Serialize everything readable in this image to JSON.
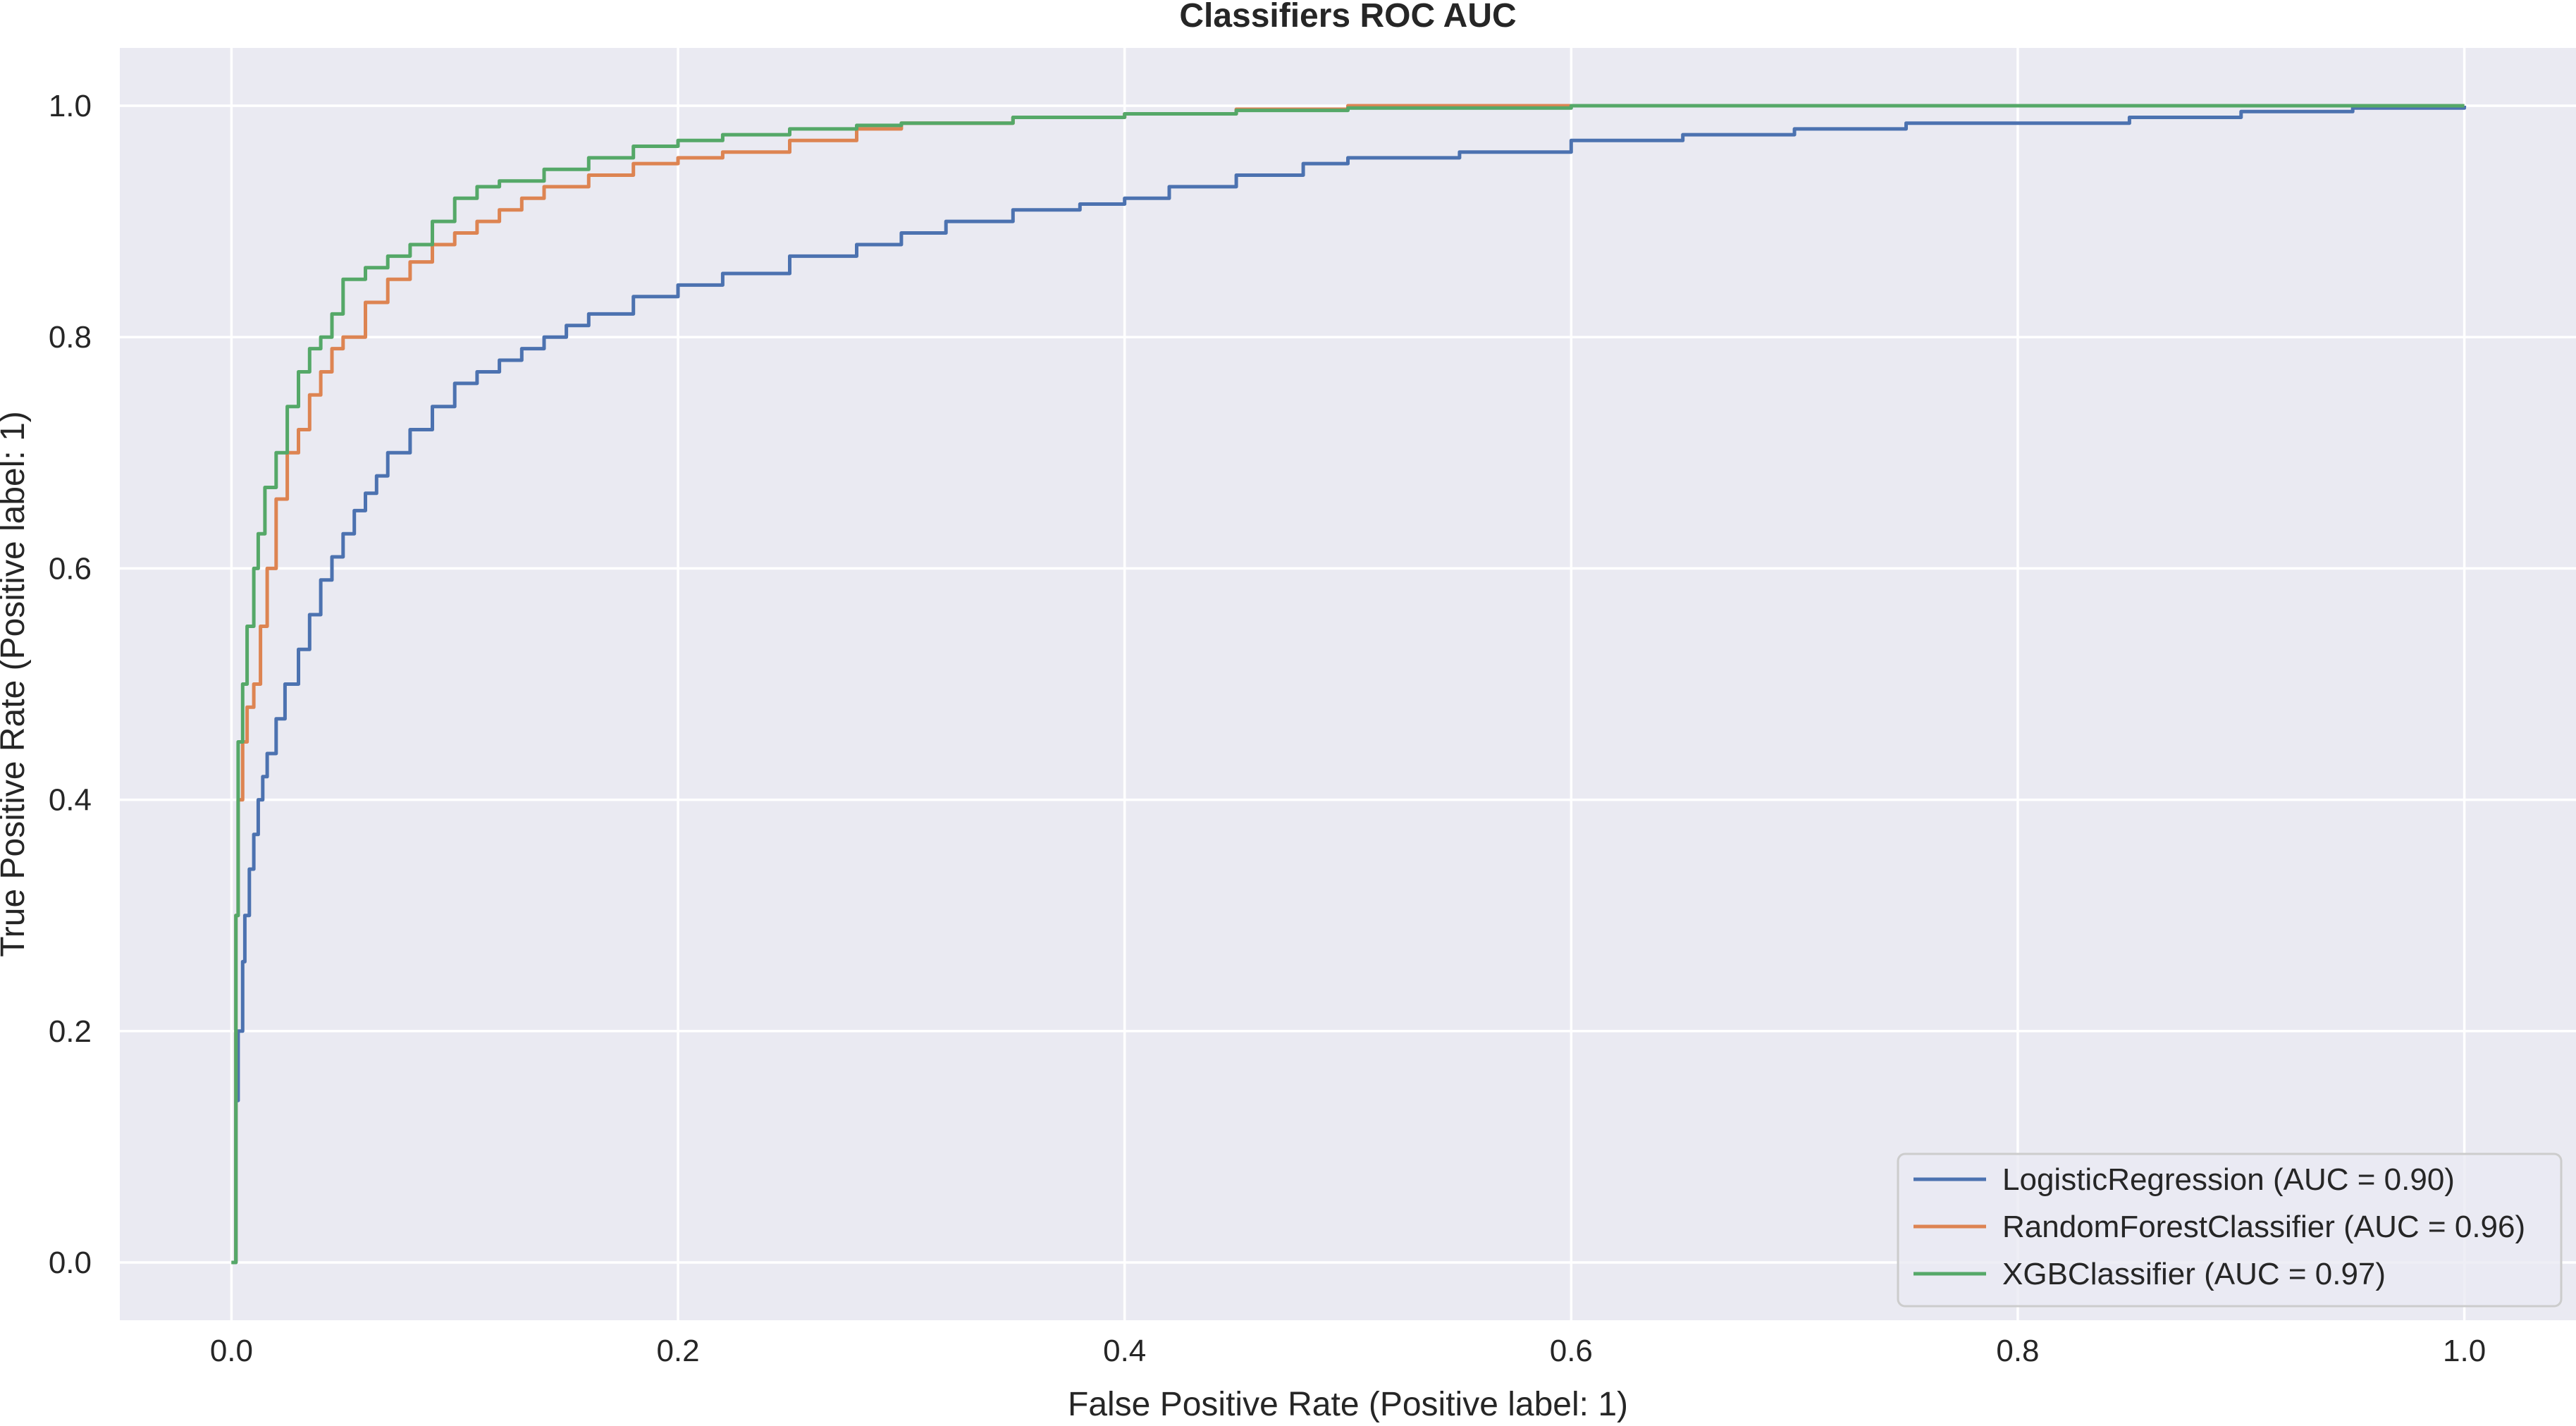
{
  "chart_data": {
    "type": "line",
    "title": "Classifiers ROC AUC",
    "xlabel": "False Positive Rate (Positive label: 1)",
    "ylabel": "True Positive Rate (Positive label: 1)",
    "xlim": [
      -0.05,
      1.05
    ],
    "ylim": [
      -0.05,
      1.05
    ],
    "x_ticks": [
      0.0,
      0.2,
      0.4,
      0.6,
      0.8,
      1.0
    ],
    "x_tick_labels": [
      "0.0",
      "0.2",
      "0.4",
      "0.6",
      "0.8",
      "1.0"
    ],
    "y_ticks": [
      0.0,
      0.2,
      0.4,
      0.6,
      0.8,
      1.0
    ],
    "y_tick_labels": [
      "0.0",
      "0.2",
      "0.4",
      "0.6",
      "0.8",
      "1.0"
    ],
    "grid": true,
    "background_color": "#EAEAF2",
    "grid_color": "#FFFFFF",
    "legend_position": "lower-right",
    "series": [
      {
        "name": "LogisticRegression (AUC = 0.90)",
        "color": "#4C72B0",
        "x": [
          0.0,
          0.002,
          0.003,
          0.005,
          0.006,
          0.008,
          0.01,
          0.012,
          0.014,
          0.016,
          0.02,
          0.024,
          0.03,
          0.035,
          0.04,
          0.045,
          0.05,
          0.055,
          0.06,
          0.065,
          0.07,
          0.08,
          0.09,
          0.1,
          0.11,
          0.12,
          0.13,
          0.14,
          0.15,
          0.16,
          0.18,
          0.2,
          0.22,
          0.25,
          0.28,
          0.3,
          0.32,
          0.35,
          0.38,
          0.4,
          0.42,
          0.45,
          0.48,
          0.5,
          0.55,
          0.6,
          0.65,
          0.7,
          0.75,
          0.8,
          0.85,
          0.9,
          0.95,
          1.0
        ],
        "y": [
          0.0,
          0.14,
          0.2,
          0.26,
          0.3,
          0.34,
          0.37,
          0.4,
          0.42,
          0.44,
          0.47,
          0.5,
          0.53,
          0.56,
          0.59,
          0.61,
          0.63,
          0.65,
          0.665,
          0.68,
          0.7,
          0.72,
          0.74,
          0.76,
          0.77,
          0.78,
          0.79,
          0.8,
          0.81,
          0.82,
          0.835,
          0.845,
          0.855,
          0.87,
          0.88,
          0.89,
          0.9,
          0.91,
          0.915,
          0.92,
          0.93,
          0.94,
          0.95,
          0.955,
          0.96,
          0.97,
          0.975,
          0.98,
          0.985,
          0.985,
          0.99,
          0.995,
          0.998,
          1.0
        ]
      },
      {
        "name": "RandomForestClassifier (AUC = 0.96)",
        "color": "#DD8452",
        "x": [
          0.0,
          0.002,
          0.003,
          0.005,
          0.007,
          0.01,
          0.013,
          0.016,
          0.02,
          0.025,
          0.03,
          0.035,
          0.04,
          0.045,
          0.05,
          0.06,
          0.07,
          0.08,
          0.09,
          0.1,
          0.11,
          0.12,
          0.13,
          0.14,
          0.16,
          0.18,
          0.2,
          0.22,
          0.25,
          0.28,
          0.3,
          0.35,
          0.4,
          0.45,
          0.5,
          0.6,
          0.7,
          0.8,
          0.9,
          1.0
        ],
        "y": [
          0.0,
          0.3,
          0.4,
          0.45,
          0.48,
          0.5,
          0.55,
          0.6,
          0.66,
          0.7,
          0.72,
          0.75,
          0.77,
          0.79,
          0.8,
          0.83,
          0.85,
          0.865,
          0.88,
          0.89,
          0.9,
          0.91,
          0.92,
          0.93,
          0.94,
          0.95,
          0.955,
          0.96,
          0.97,
          0.98,
          0.985,
          0.99,
          0.993,
          0.997,
          1.0,
          1.0,
          1.0,
          1.0,
          1.0,
          1.0
        ]
      },
      {
        "name": "XGBClassifier (AUC = 0.97)",
        "color": "#55A868",
        "x": [
          0.0,
          0.002,
          0.003,
          0.005,
          0.007,
          0.01,
          0.012,
          0.015,
          0.02,
          0.025,
          0.03,
          0.035,
          0.04,
          0.045,
          0.05,
          0.06,
          0.07,
          0.08,
          0.09,
          0.1,
          0.11,
          0.12,
          0.14,
          0.16,
          0.18,
          0.2,
          0.22,
          0.25,
          0.28,
          0.3,
          0.35,
          0.4,
          0.45,
          0.5,
          0.6,
          0.7,
          0.8,
          0.9,
          1.0
        ],
        "y": [
          0.0,
          0.3,
          0.45,
          0.5,
          0.55,
          0.6,
          0.63,
          0.67,
          0.7,
          0.74,
          0.77,
          0.79,
          0.8,
          0.82,
          0.85,
          0.86,
          0.87,
          0.88,
          0.9,
          0.92,
          0.93,
          0.935,
          0.945,
          0.955,
          0.965,
          0.97,
          0.975,
          0.98,
          0.983,
          0.985,
          0.99,
          0.993,
          0.996,
          0.998,
          1.0,
          1.0,
          1.0,
          1.0,
          1.0
        ]
      }
    ]
  }
}
